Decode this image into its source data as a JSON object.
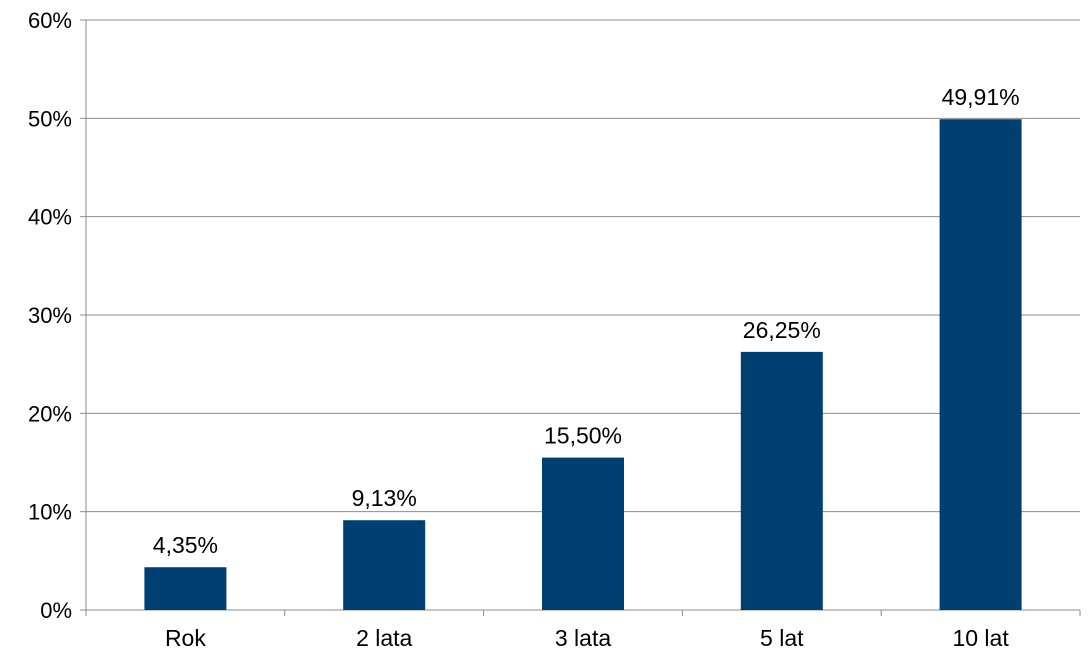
{
  "colors": {
    "bar": "#003f72",
    "grid": "#8c8c8c",
    "axis": "#8c8c8c"
  },
  "chart_data": {
    "type": "bar",
    "title": "",
    "xlabel": "",
    "ylabel": "",
    "ylim": [
      0,
      60
    ],
    "grid": true,
    "legend": "none",
    "y_ticks": [
      "0%",
      "10%",
      "20%",
      "30%",
      "40%",
      "50%",
      "60%"
    ],
    "y_tick_values": [
      0,
      10,
      20,
      30,
      40,
      50,
      60
    ],
    "categories": [
      "Rok",
      "2 lata",
      "3 lata",
      "5 lat",
      "10 lat"
    ],
    "values": [
      4.35,
      9.13,
      15.5,
      26.25,
      49.91
    ],
    "data_labels": [
      "4,35%",
      "9,13%",
      "15,50%",
      "26,25%",
      "49,91%"
    ]
  }
}
